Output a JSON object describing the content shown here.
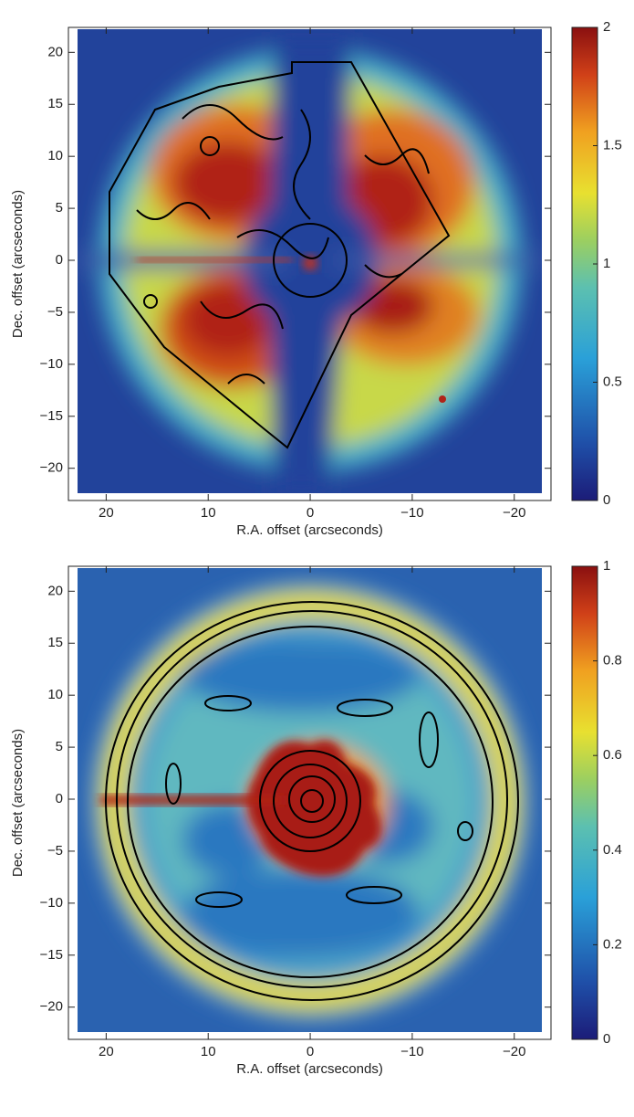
{
  "chart_data": [
    {
      "type": "heatmap",
      "xlabel": "R.A. offset (arcseconds)",
      "ylabel": "Dec. offset (arcseconds)",
      "xlim": [
        23.7,
        -23.6
      ],
      "ylim": [
        -23.1,
        22.4
      ],
      "xticks": [
        20,
        10,
        0,
        {
          "value": -10,
          "label": "−10"
        },
        {
          "value": -20,
          "label": "−20"
        }
      ],
      "yticks": [
        {
          "value": -20,
          "label": "−20"
        },
        {
          "value": -15,
          "label": "−15"
        },
        {
          "value": -10,
          "label": "−10"
        },
        {
          "value": -5,
          "label": "−5"
        },
        0,
        5,
        10,
        15,
        20
      ],
      "colorbar_lim": [
        0,
        2
      ],
      "colorbar_ticks": [
        0,
        0.5,
        1,
        1.5,
        2
      ]
    },
    {
      "type": "heatmap",
      "xlabel": "R.A. offset (arcseconds)",
      "ylabel": "Dec. offset (arcseconds)",
      "xlim": [
        23.7,
        -23.6
      ],
      "ylim": [
        -23.1,
        22.4
      ],
      "xticks": [
        20,
        10,
        0,
        {
          "value": -10,
          "label": "−10"
        },
        {
          "value": -20,
          "label": "−20"
        }
      ],
      "yticks": [
        {
          "value": -20,
          "label": "−20"
        },
        {
          "value": -15,
          "label": "−15"
        },
        {
          "value": -10,
          "label": "−10"
        },
        {
          "value": -5,
          "label": "−5"
        },
        0,
        5,
        10,
        15,
        20
      ],
      "colorbar_lim": [
        0,
        1
      ],
      "colorbar_ticks": [
        0,
        0.2,
        0.4,
        0.6,
        0.8,
        1
      ]
    }
  ]
}
